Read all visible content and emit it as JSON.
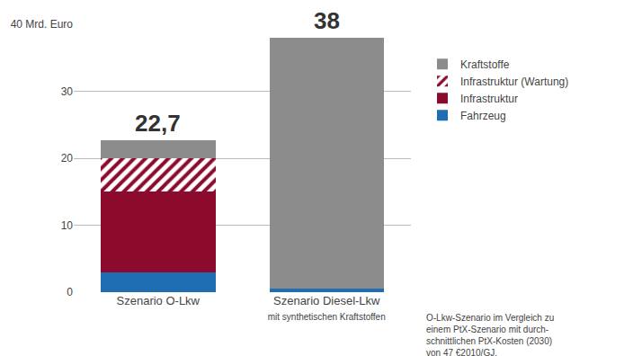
{
  "chart_data": {
    "type": "bar",
    "stacked": true,
    "grid": true,
    "legend": "upper right",
    "categories": [
      "Szenario O-Lkw",
      "Szenario Diesel-Lkw"
    ],
    "category_notes": [
      null,
      "mit synthetischen Kraftstoffen"
    ],
    "series": [
      {
        "name": "Fahrzeug",
        "color": "#1f6db3",
        "values": [
          3.0,
          0.5
        ]
      },
      {
        "name": "Infrastruktur",
        "color": "#8c0a2c",
        "values": [
          12.0,
          0
        ]
      },
      {
        "name": "Infrastruktur (Wartung)",
        "color": "#8c0a2c",
        "marker": "hatch",
        "values": [
          5.0,
          0
        ]
      },
      {
        "name": "Kraftstoffe",
        "color": "#8c8c8c",
        "values": [
          2.7,
          37.5
        ]
      }
    ],
    "totals": [
      22.7,
      38
    ],
    "total_labels": [
      "22,7",
      "38"
    ],
    "ylim": [
      0,
      40
    ],
    "yticks": [
      0,
      10,
      20,
      30,
      {
        "value": 40,
        "label": "40 Mrd. Euro"
      }
    ],
    "note": [
      "O-Lkw-Szenario im Vergleich zu",
      "einem PtX-Szenario mit durch-",
      "schnittlichen PtX-Kosten (2030)",
      "von 47 €2010/GJ."
    ]
  }
}
